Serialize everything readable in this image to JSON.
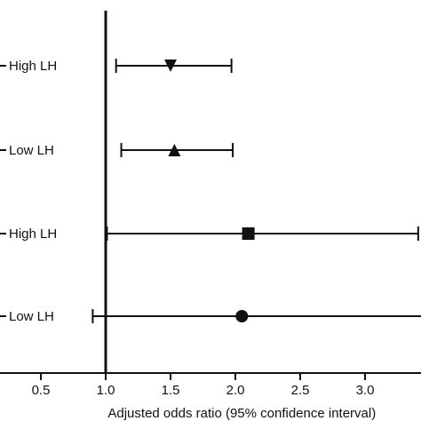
{
  "chart_data": {
    "type": "scatter",
    "subtype": "forest-plot",
    "title": "",
    "xlabel": "Adjusted odds ratio (95% confidence interval)",
    "ylabel": "",
    "xlim": [
      0.3,
      3.45
    ],
    "x_ticks": [
      0.5,
      1.0,
      1.5,
      2.0,
      2.5,
      3.0
    ],
    "x_tick_labels": [
      "0.5",
      "1.0",
      "1.5",
      "2.0",
      "2.5",
      "3.0"
    ],
    "reference_line": 1.0,
    "grid": false,
    "legend": "none",
    "rows": [
      {
        "label": "High LH",
        "estimate": 1.5,
        "lower": 1.08,
        "upper": 1.97,
        "marker": "triangle-down"
      },
      {
        "label": "Low LH",
        "estimate": 1.53,
        "lower": 1.12,
        "upper": 1.98,
        "marker": "triangle-up"
      },
      {
        "label": "High LH",
        "estimate": 2.1,
        "lower": 1.01,
        "upper": 3.41,
        "marker": "square"
      },
      {
        "label": "Low LH",
        "estimate": 2.05,
        "lower": 0.9,
        "upper": 3.6,
        "marker": "circle"
      }
    ],
    "colors": {
      "ink": "#111111",
      "background": "#ffffff"
    }
  }
}
